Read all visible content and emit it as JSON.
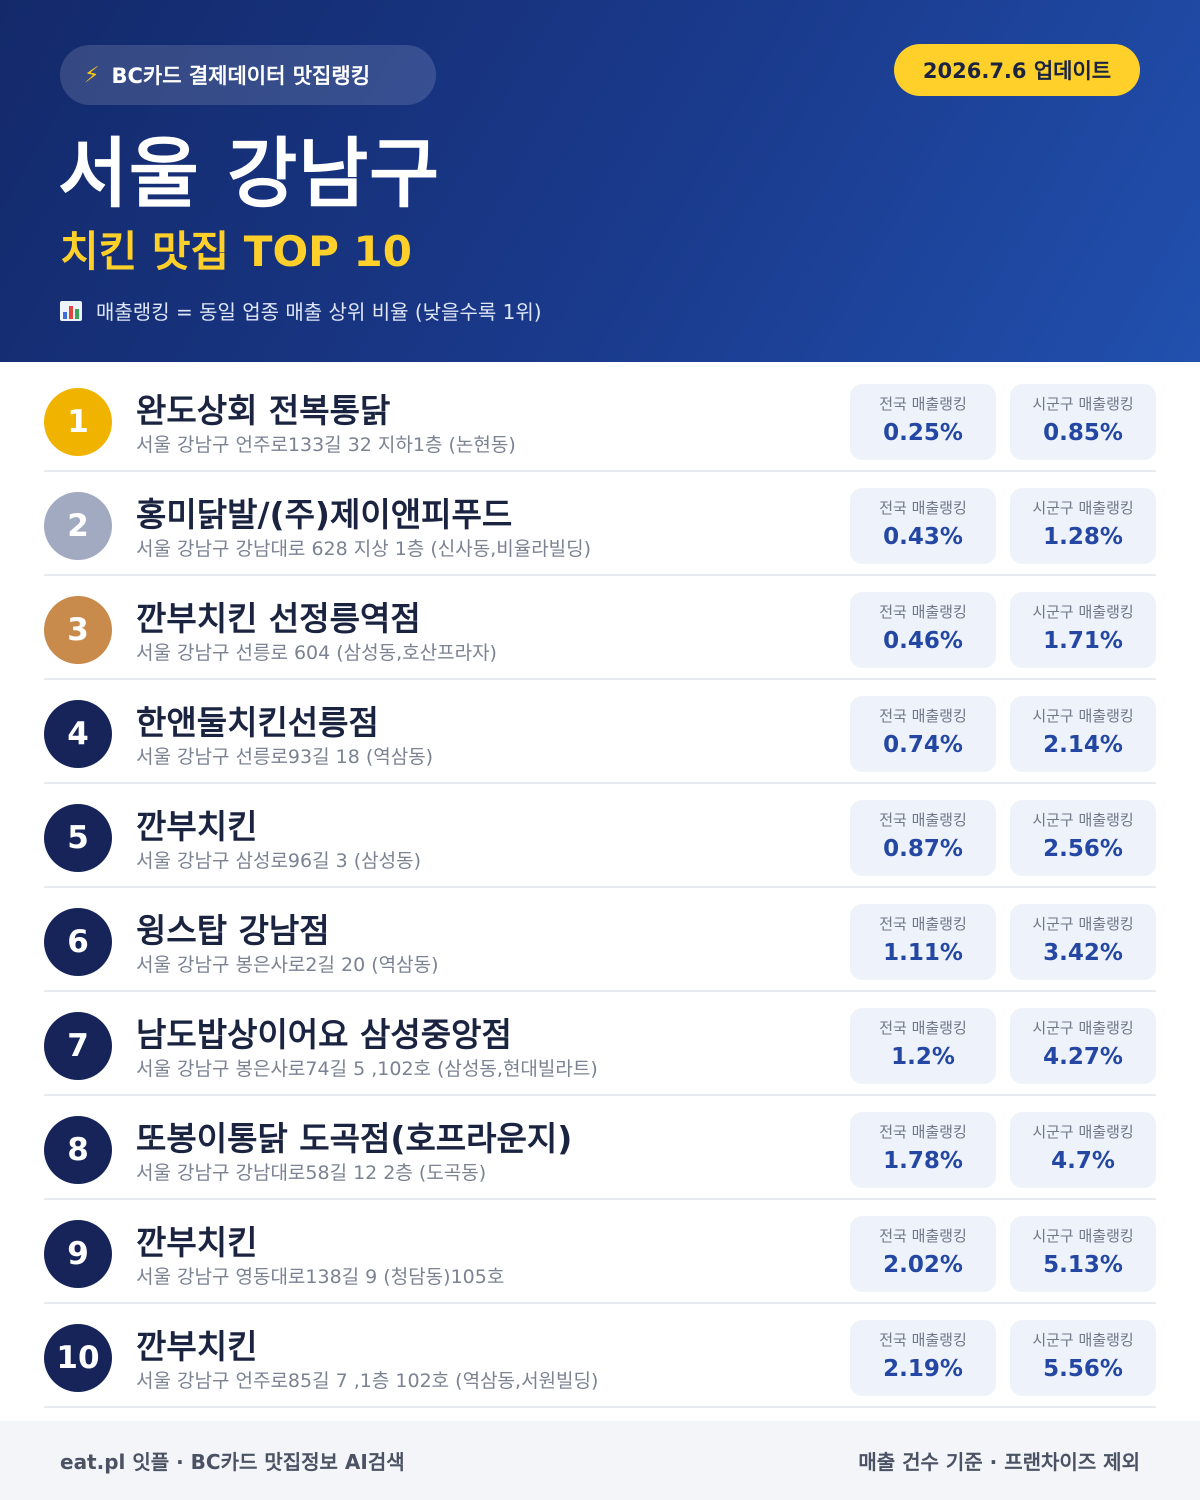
{
  "header": {
    "source_label": "BC카드 결제데이터 맛집랭킹",
    "update_label": "2026.7.6 업데이트",
    "title": "서울 강남구",
    "subtitle": "치킨 맛집 TOP 10",
    "note": "매출랭킹 = 동일 업종 매출 상위 비율 (낮을수록 1위)"
  },
  "stat_labels": {
    "national": "전국 매출랭킹",
    "district": "시군구 매출랭킹"
  },
  "colors": {
    "gold": "#f0b400",
    "silver": "#a1aac1",
    "bronze": "#c98b4b",
    "navy": "#16245a",
    "accent_yellow": "#ffd02a"
  },
  "icons": {
    "source": "lightning-icon",
    "note": "bar-chart-icon"
  },
  "rows": [
    {
      "rank": "1",
      "name": "완도상회 전복통닭",
      "address": "서울 강남구 언주로133길 32 지하1층 (논현동)",
      "national": "0.25%",
      "district": "0.85%"
    },
    {
      "rank": "2",
      "name": "홍미닭발/(주)제이앤피푸드",
      "address": "서울 강남구 강남대로 628 지상 1층 (신사동,비율라빌딩)",
      "national": "0.43%",
      "district": "1.28%"
    },
    {
      "rank": "3",
      "name": "깐부치킨 선정릉역점",
      "address": "서울 강남구 선릉로 604 (삼성동,호산프라자)",
      "national": "0.46%",
      "district": "1.71%"
    },
    {
      "rank": "4",
      "name": "한앤둘치킨선릉점",
      "address": "서울 강남구 선릉로93길 18 (역삼동)",
      "national": "0.74%",
      "district": "2.14%"
    },
    {
      "rank": "5",
      "name": "깐부치킨",
      "address": "서울 강남구 삼성로96길 3 (삼성동)",
      "national": "0.87%",
      "district": "2.56%"
    },
    {
      "rank": "6",
      "name": "윙스탑 강남점",
      "address": "서울 강남구 봉은사로2길 20 (역삼동)",
      "national": "1.11%",
      "district": "3.42%"
    },
    {
      "rank": "7",
      "name": "남도밥상이어요 삼성중앙점",
      "address": "서울 강남구 봉은사로74길 5 ,102호 (삼성동,현대빌라트)",
      "national": "1.2%",
      "district": "4.27%"
    },
    {
      "rank": "8",
      "name": "또봉이통닭 도곡점(호프라운지)",
      "address": "서울 강남구 강남대로58길 12 2층 (도곡동)",
      "national": "1.78%",
      "district": "4.7%"
    },
    {
      "rank": "9",
      "name": "깐부치킨",
      "address": "서울 강남구 영동대로138길 9 (청담동)105호",
      "national": "2.02%",
      "district": "5.13%"
    },
    {
      "rank": "10",
      "name": "깐부치킨",
      "address": "서울 강남구 언주로85길 7 ,1층 102호 (역삼동,서원빌딩)",
      "national": "2.19%",
      "district": "5.56%"
    }
  ],
  "footer": {
    "left": "eat.pl 잇플 · BC카드 맛집정보 AI검색",
    "right": "매출 건수 기준 · 프랜차이즈 제외"
  }
}
